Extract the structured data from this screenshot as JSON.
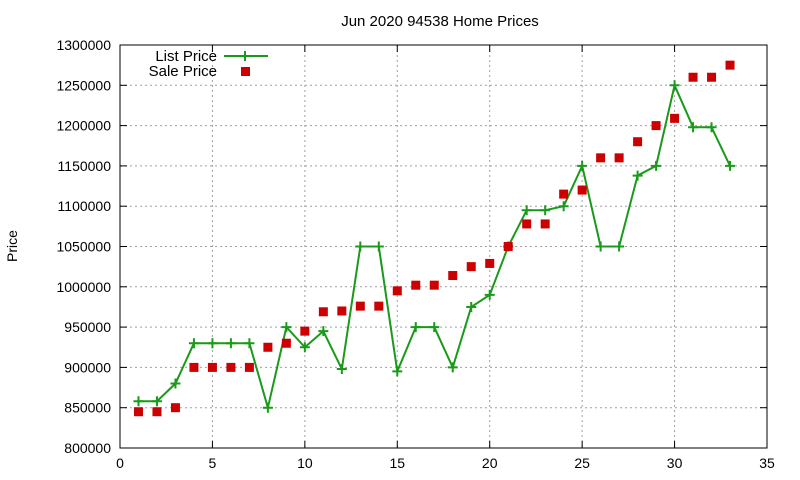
{
  "chart_data": {
    "type": "line",
    "title": "Jun 2020 94538 Home Prices",
    "xlabel": "",
    "ylabel": "Price",
    "xlim": [
      0,
      35
    ],
    "ylim": [
      800000,
      1300000
    ],
    "xticks": [
      "0",
      "5",
      "10",
      "15",
      "20",
      "25",
      "30",
      "35"
    ],
    "yticks": [
      "800000",
      "850000",
      "900000",
      "950000",
      "1000000",
      "1050000",
      "1100000",
      "1150000",
      "1200000",
      "1250000",
      "1300000"
    ],
    "grid": true,
    "legend_position": "top-left",
    "series": [
      {
        "name": "List Price",
        "style": "line with plus markers",
        "color": "#1a9a1a",
        "x": [
          1,
          2,
          3,
          4,
          5,
          6,
          7,
          8,
          9,
          10,
          11,
          12,
          13,
          14,
          15,
          16,
          17,
          18,
          19,
          20,
          21,
          22,
          23,
          24,
          25,
          26,
          27,
          28,
          29,
          30,
          31,
          32,
          33
        ],
        "y": [
          858000,
          858000,
          880000,
          930000,
          930000,
          930000,
          930000,
          850000,
          950000,
          925000,
          945000,
          898000,
          1050000,
          1050000,
          895000,
          950000,
          950000,
          900000,
          975000,
          990000,
          1050000,
          1095000,
          1095000,
          1100000,
          1150000,
          1050000,
          1050000,
          1138000,
          1150000,
          1250000,
          1198000,
          1198000,
          1150000
        ]
      },
      {
        "name": "Sale Price",
        "style": "square markers",
        "color": "#cc0000",
        "x": [
          1,
          2,
          3,
          4,
          5,
          6,
          7,
          8,
          9,
          10,
          11,
          12,
          13,
          14,
          15,
          16,
          17,
          18,
          19,
          20,
          21,
          22,
          23,
          24,
          25,
          26,
          27,
          28,
          29,
          30,
          31,
          32,
          33
        ],
        "y": [
          845000,
          845000,
          850000,
          900000,
          900000,
          900000,
          900000,
          925000,
          930000,
          945000,
          969000,
          970000,
          976000,
          976000,
          995000,
          1002000,
          1002000,
          1014000,
          1025000,
          1029000,
          1050000,
          1078000,
          1078000,
          1115000,
          1120000,
          1160000,
          1160000,
          1180000,
          1200000,
          1209000,
          1260000,
          1260000,
          1275000
        ]
      }
    ]
  }
}
